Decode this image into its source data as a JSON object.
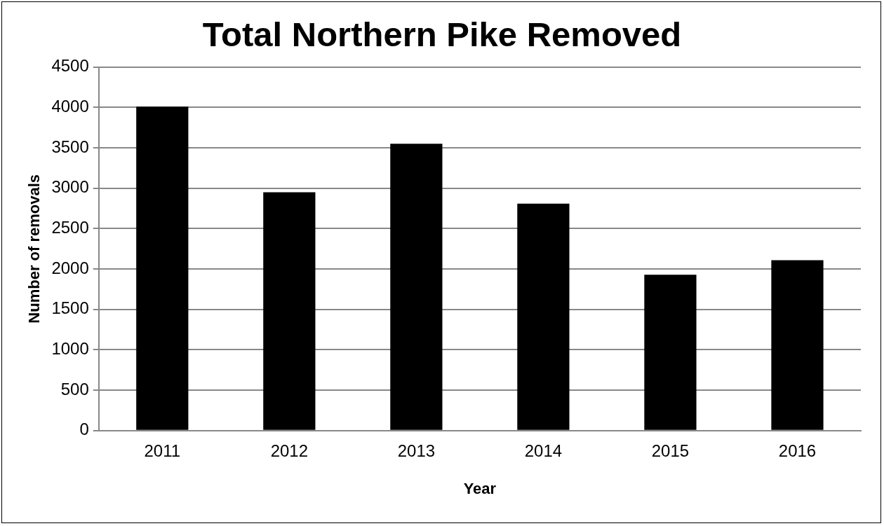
{
  "chart_data": {
    "type": "bar",
    "title": "Total Northern Pike Removed",
    "xlabel": "Year",
    "ylabel": "Number of removals",
    "categories": [
      "2011",
      "2012",
      "2013",
      "2014",
      "2015",
      "2016"
    ],
    "values": [
      4010,
      2950,
      3550,
      2810,
      1930,
      2110
    ],
    "color": "#000000",
    "ylim": [
      0,
      4500
    ],
    "yticks": [
      0,
      500,
      1000,
      1500,
      2000,
      2500,
      3000,
      3500,
      4000,
      4500
    ],
    "grid": "y",
    "legend": false
  }
}
